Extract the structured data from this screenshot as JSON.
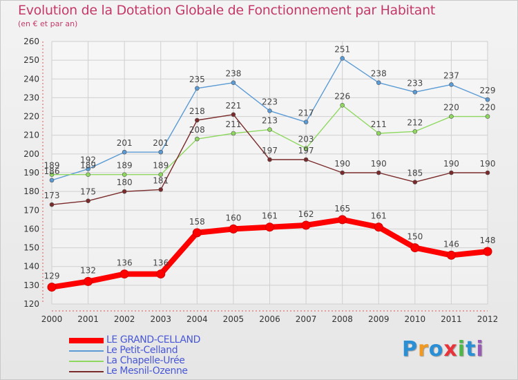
{
  "title": "Evolution de la Dotation Globale de Fonctionnement par Habitant",
  "subtitle": "(en € et par an)",
  "logo": "Proxiti",
  "chart_data": {
    "type": "line",
    "title": "Evolution de la Dotation Globale de Fonctionnement par Habitant",
    "ylabel": "(en € et par an)",
    "xlabel": "",
    "ylim": [
      120,
      260
    ],
    "yticks": [
      120,
      130,
      140,
      150,
      160,
      170,
      180,
      190,
      200,
      210,
      220,
      230,
      240,
      250,
      260
    ],
    "categories": [
      "2000",
      "2001",
      "2002",
      "2003",
      "2004",
      "2005",
      "2006",
      "2007",
      "2008",
      "2009",
      "2010",
      "2011",
      "2012"
    ],
    "grid": true,
    "legend_position": "bottom-left",
    "series": [
      {
        "name": "LE GRAND-CELLAND",
        "color": "#ff0000",
        "values": [
          129,
          132,
          136,
          136,
          158,
          160,
          161,
          162,
          165,
          161,
          150,
          146,
          148
        ]
      },
      {
        "name": "Le Petit-Celland",
        "color": "#5b9bd5",
        "values": [
          186,
          192,
          201,
          201,
          235,
          238,
          223,
          217,
          251,
          238,
          233,
          237,
          229
        ]
      },
      {
        "name": "La Chapelle-Urée",
        "color": "#8fd860",
        "values": [
          189,
          189,
          189,
          189,
          208,
          211,
          213,
          203,
          226,
          211,
          212,
          220,
          220
        ]
      },
      {
        "name": "Le Mesnil-Ozenne",
        "color": "#7a2a2a",
        "values": [
          173,
          175,
          180,
          181,
          218,
          221,
          197,
          197,
          190,
          190,
          185,
          190,
          190
        ]
      }
    ]
  }
}
